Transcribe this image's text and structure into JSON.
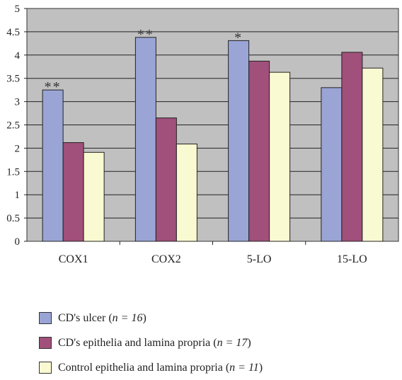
{
  "chart_data": {
    "type": "bar",
    "categories": [
      "COX1",
      "COX2",
      "5-LO",
      "15-LO"
    ],
    "series": [
      {
        "name": "CD's ulcer",
        "n_label": "n = 16",
        "color": "#9aa5d6",
        "values": [
          3.25,
          4.38,
          4.31,
          3.3
        ]
      },
      {
        "name": "CD's epithelia and lamina propria",
        "n_label": "n = 17",
        "color": "#a0507a",
        "values": [
          2.12,
          2.65,
          3.87,
          4.06
        ]
      },
      {
        "name": "Control epithelia and lamina propria",
        "n_label": "n = 11",
        "color": "#fafad2",
        "values": [
          1.91,
          2.09,
          3.63,
          3.72
        ]
      }
    ],
    "annotations": [
      "**",
      "**",
      "*",
      ""
    ],
    "ylim": [
      0,
      5
    ],
    "yticks": [
      "0",
      "0.5",
      "1",
      "1.5",
      "2",
      "2.5",
      "3",
      "3.5",
      "4",
      "4.5",
      "5"
    ],
    "grid": true,
    "plot_background": "#c0c0c0",
    "legend_position": "bottom"
  }
}
